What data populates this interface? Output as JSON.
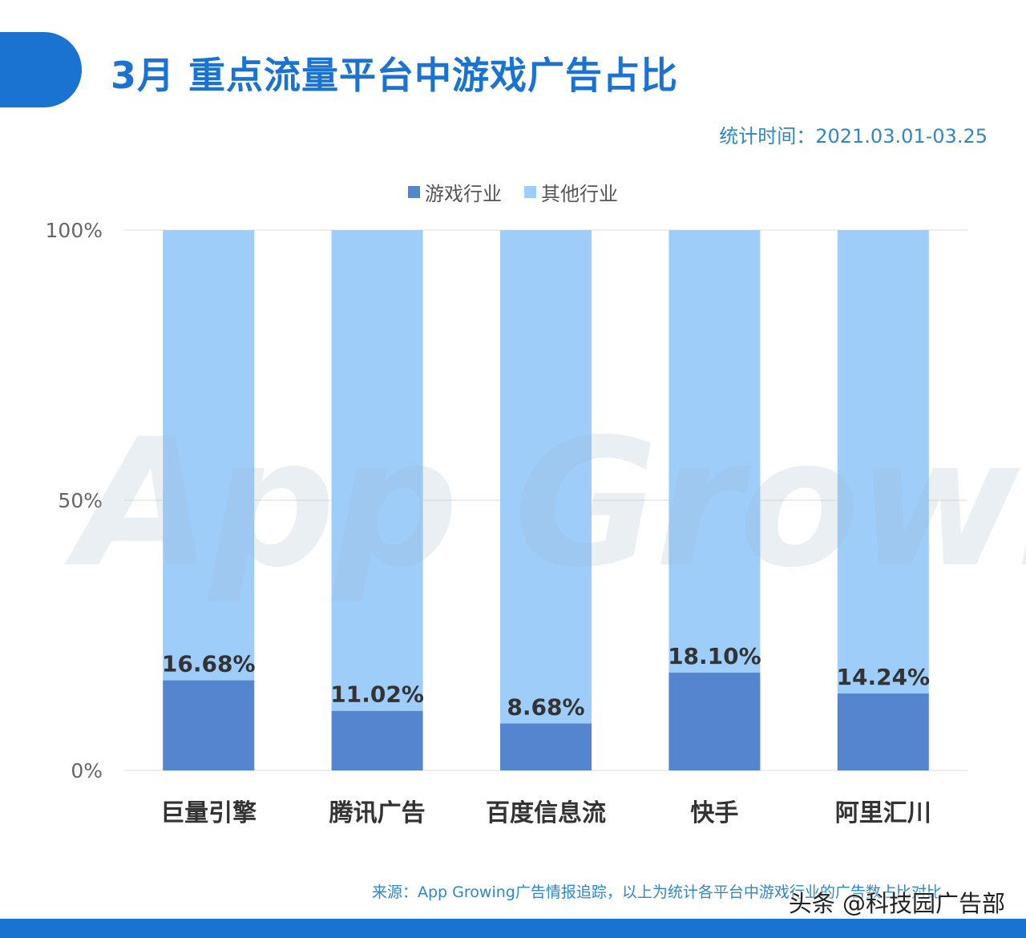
{
  "header": {
    "title": "3月 重点流量平台中游戏广告占比",
    "period": "统计时间：2021.03.01-03.25"
  },
  "watermark": {
    "text": "App Growing"
  },
  "footer": {
    "source": "来源：App Growing广告情报追踪，以上为统计各平台中游戏行业的广告数占比对比",
    "credit": "头条 @科技园广告部"
  },
  "colors": {
    "brand": "#1a73d1",
    "game": "#5585cf",
    "other": "#9ecdf9"
  },
  "chart_data": {
    "type": "bar",
    "stacked": true,
    "categories": [
      "巨量引擎",
      "腾讯广告",
      "百度信息流",
      "快手",
      "阿里汇川"
    ],
    "series": [
      {
        "name": "游戏行业",
        "values": [
          16.68,
          11.02,
          8.68,
          18.1,
          14.24
        ],
        "labels": [
          "16.68%",
          "11.02%",
          "8.68%",
          "18.10%",
          "14.24%"
        ]
      },
      {
        "name": "其他行业",
        "values": [
          83.32,
          88.98,
          91.32,
          81.9,
          85.76
        ]
      }
    ],
    "yticks": [
      "0%",
      "50%",
      "100%"
    ],
    "ylim": [
      0,
      100
    ],
    "grid": true,
    "legend_position": "top-center"
  }
}
